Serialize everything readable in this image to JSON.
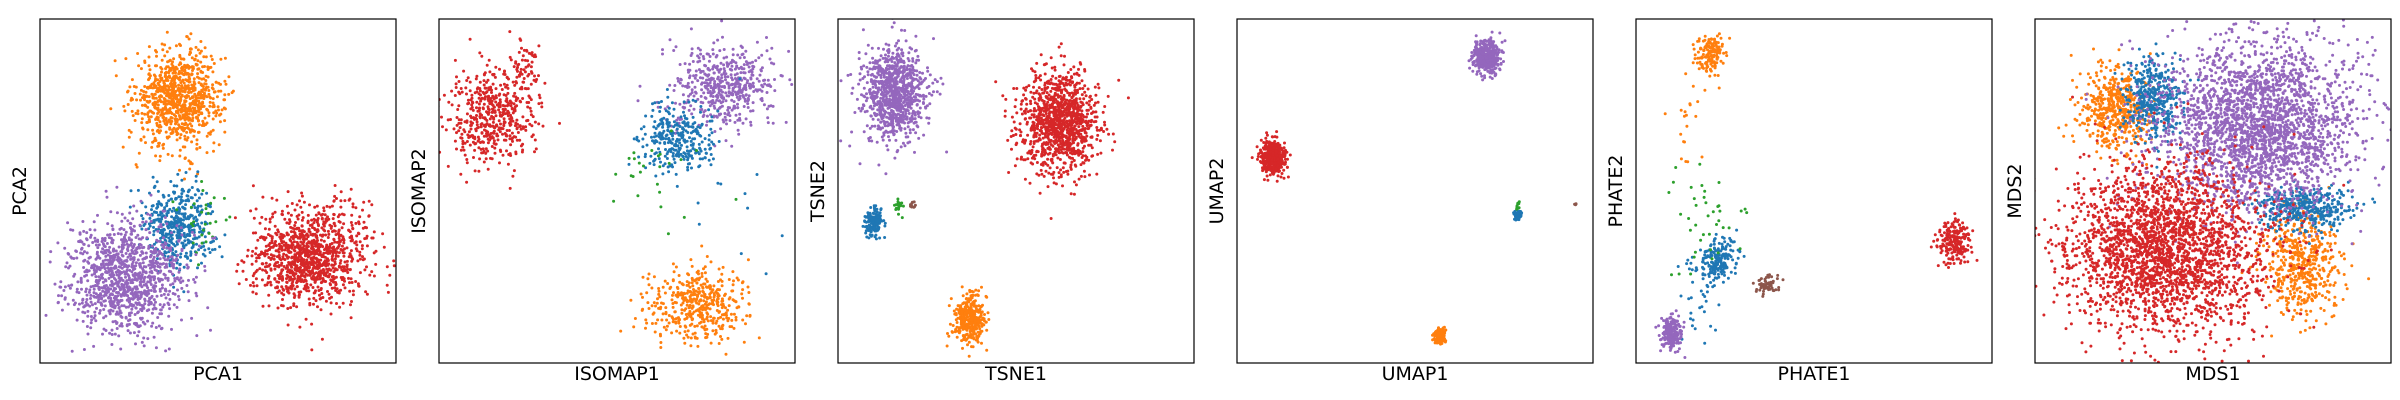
{
  "chart_data": [
    {
      "type": "scatter",
      "xlabel": "PCA1",
      "ylabel": "PCA2",
      "xlim": [
        0,
        1
      ],
      "ylim": [
        0,
        1
      ],
      "grid": false,
      "clusters": [
        {
          "color": "#ff7f0e",
          "cx": 0.39,
          "cy": 0.77,
          "sx": 0.06,
          "sy": 0.07,
          "n": 900
        },
        {
          "color": "#1f77b4",
          "cx": 0.39,
          "cy": 0.4,
          "sx": 0.05,
          "sy": 0.06,
          "n": 450
        },
        {
          "color": "#2ca02c",
          "cx": 0.45,
          "cy": 0.42,
          "sx": 0.04,
          "sy": 0.05,
          "n": 30
        },
        {
          "color": "#9467bd",
          "cx": 0.24,
          "cy": 0.25,
          "sx": 0.08,
          "sy": 0.08,
          "n": 1100
        },
        {
          "color": "#d62728",
          "cx": 0.76,
          "cy": 0.31,
          "sx": 0.08,
          "sy": 0.07,
          "n": 1100
        }
      ]
    },
    {
      "type": "scatter",
      "xlabel": "ISOMAP1",
      "ylabel": "ISOMAP2",
      "xlim": [
        0,
        1
      ],
      "ylim": [
        0,
        1
      ],
      "grid": false,
      "clusters": [
        {
          "color": "#d62728",
          "cx": 0.15,
          "cy": 0.72,
          "sx": 0.06,
          "sy": 0.07,
          "n": 500
        },
        {
          "color": "#d62728",
          "cx": 0.24,
          "cy": 0.86,
          "sx": 0.02,
          "sy": 0.05,
          "n": 60
        },
        {
          "color": "#9467bd",
          "cx": 0.8,
          "cy": 0.8,
          "sx": 0.07,
          "sy": 0.06,
          "n": 500
        },
        {
          "color": "#1f77b4",
          "cx": 0.67,
          "cy": 0.65,
          "sx": 0.05,
          "sy": 0.05,
          "n": 300
        },
        {
          "color": "#2ca02c",
          "cx": 0.6,
          "cy": 0.55,
          "sx": 0.08,
          "sy": 0.08,
          "n": 25
        },
        {
          "color": "#ff7f0e",
          "cx": 0.72,
          "cy": 0.17,
          "sx": 0.07,
          "sy": 0.05,
          "n": 450
        },
        {
          "color": "#1f77b4",
          "cx": 0.78,
          "cy": 0.5,
          "sx": 0.12,
          "sy": 0.12,
          "n": 15
        }
      ]
    },
    {
      "type": "scatter",
      "xlabel": "TSNE1",
      "ylabel": "TSNE2",
      "xlim": [
        0,
        1
      ],
      "ylim": [
        0,
        1
      ],
      "grid": false,
      "clusters": [
        {
          "color": "#9467bd",
          "cx": 0.16,
          "cy": 0.78,
          "sx": 0.045,
          "sy": 0.07,
          "n": 900
        },
        {
          "color": "#d62728",
          "cx": 0.62,
          "cy": 0.7,
          "sx": 0.055,
          "sy": 0.075,
          "n": 1100
        },
        {
          "color": "#1f77b4",
          "cx": 0.1,
          "cy": 0.41,
          "sx": 0.012,
          "sy": 0.02,
          "n": 150
        },
        {
          "color": "#2ca02c",
          "cx": 0.17,
          "cy": 0.46,
          "sx": 0.006,
          "sy": 0.01,
          "n": 20
        },
        {
          "color": "#8c564b",
          "cx": 0.21,
          "cy": 0.46,
          "sx": 0.004,
          "sy": 0.006,
          "n": 10
        },
        {
          "color": "#ff7f0e",
          "cx": 0.37,
          "cy": 0.13,
          "sx": 0.022,
          "sy": 0.035,
          "n": 350
        }
      ]
    },
    {
      "type": "scatter",
      "xlabel": "UMAP1",
      "ylabel": "UMAP2",
      "xlim": [
        0,
        1
      ],
      "ylim": [
        0,
        1
      ],
      "grid": false,
      "clusters": [
        {
          "color": "#9467bd",
          "cx": 0.7,
          "cy": 0.89,
          "sx": 0.018,
          "sy": 0.025,
          "n": 400
        },
        {
          "color": "#d62728",
          "cx": 0.1,
          "cy": 0.6,
          "sx": 0.018,
          "sy": 0.025,
          "n": 400
        },
        {
          "color": "#1f77b4",
          "cx": 0.79,
          "cy": 0.43,
          "sx": 0.006,
          "sy": 0.008,
          "n": 60
        },
        {
          "color": "#2ca02c",
          "cx": 0.79,
          "cy": 0.46,
          "sx": 0.002,
          "sy": 0.01,
          "n": 12
        },
        {
          "color": "#ff7f0e",
          "cx": 0.57,
          "cy": 0.08,
          "sx": 0.008,
          "sy": 0.012,
          "n": 120
        },
        {
          "color": "#8c564b",
          "cx": 0.95,
          "cy": 0.46,
          "sx": 0.002,
          "sy": 0.003,
          "n": 4
        }
      ]
    },
    {
      "type": "scatter",
      "xlabel": "PHATE1",
      "ylabel": "PHATE2",
      "xlim": [
        0,
        1
      ],
      "ylim": [
        0,
        1
      ],
      "grid": false,
      "clusters": [
        {
          "color": "#ff7f0e",
          "cx": 0.21,
          "cy": 0.9,
          "sx": 0.02,
          "sy": 0.03,
          "n": 150
        },
        {
          "color": "#ff7f0e",
          "cx": 0.15,
          "cy": 0.7,
          "sx": 0.02,
          "sy": 0.08,
          "n": 20
        },
        {
          "color": "#1f77b4",
          "cx": 0.23,
          "cy": 0.3,
          "sx": 0.025,
          "sy": 0.03,
          "n": 180
        },
        {
          "color": "#1f77b4",
          "cx": 0.18,
          "cy": 0.2,
          "sx": 0.04,
          "sy": 0.08,
          "n": 40
        },
        {
          "color": "#2ca02c",
          "cx": 0.2,
          "cy": 0.42,
          "sx": 0.06,
          "sy": 0.08,
          "n": 40
        },
        {
          "color": "#8c564b",
          "cx": 0.37,
          "cy": 0.23,
          "sx": 0.015,
          "sy": 0.015,
          "n": 60
        },
        {
          "color": "#9467bd",
          "cx": 0.1,
          "cy": 0.09,
          "sx": 0.015,
          "sy": 0.025,
          "n": 200
        },
        {
          "color": "#d62728",
          "cx": 0.89,
          "cy": 0.35,
          "sx": 0.025,
          "sy": 0.03,
          "n": 200
        }
      ]
    },
    {
      "type": "scatter",
      "xlabel": "MDS1",
      "ylabel": "MDS2",
      "xlim": [
        0,
        1
      ],
      "ylim": [
        0,
        1
      ],
      "grid": false,
      "clusters": [
        {
          "color": "#ff7f0e",
          "cx": 0.23,
          "cy": 0.74,
          "sx": 0.05,
          "sy": 0.06,
          "n": 500
        },
        {
          "color": "#ff7f0e",
          "cx": 0.75,
          "cy": 0.28,
          "sx": 0.05,
          "sy": 0.08,
          "n": 500
        },
        {
          "color": "#1f77b4",
          "cx": 0.33,
          "cy": 0.77,
          "sx": 0.04,
          "sy": 0.06,
          "n": 400
        },
        {
          "color": "#1f77b4",
          "cx": 0.76,
          "cy": 0.45,
          "sx": 0.07,
          "sy": 0.03,
          "n": 400
        },
        {
          "color": "#9467bd",
          "cx": 0.63,
          "cy": 0.69,
          "sx": 0.14,
          "sy": 0.12,
          "n": 2500
        },
        {
          "color": "#d62728",
          "cx": 0.36,
          "cy": 0.33,
          "sx": 0.14,
          "sy": 0.12,
          "n": 2500
        }
      ]
    }
  ]
}
